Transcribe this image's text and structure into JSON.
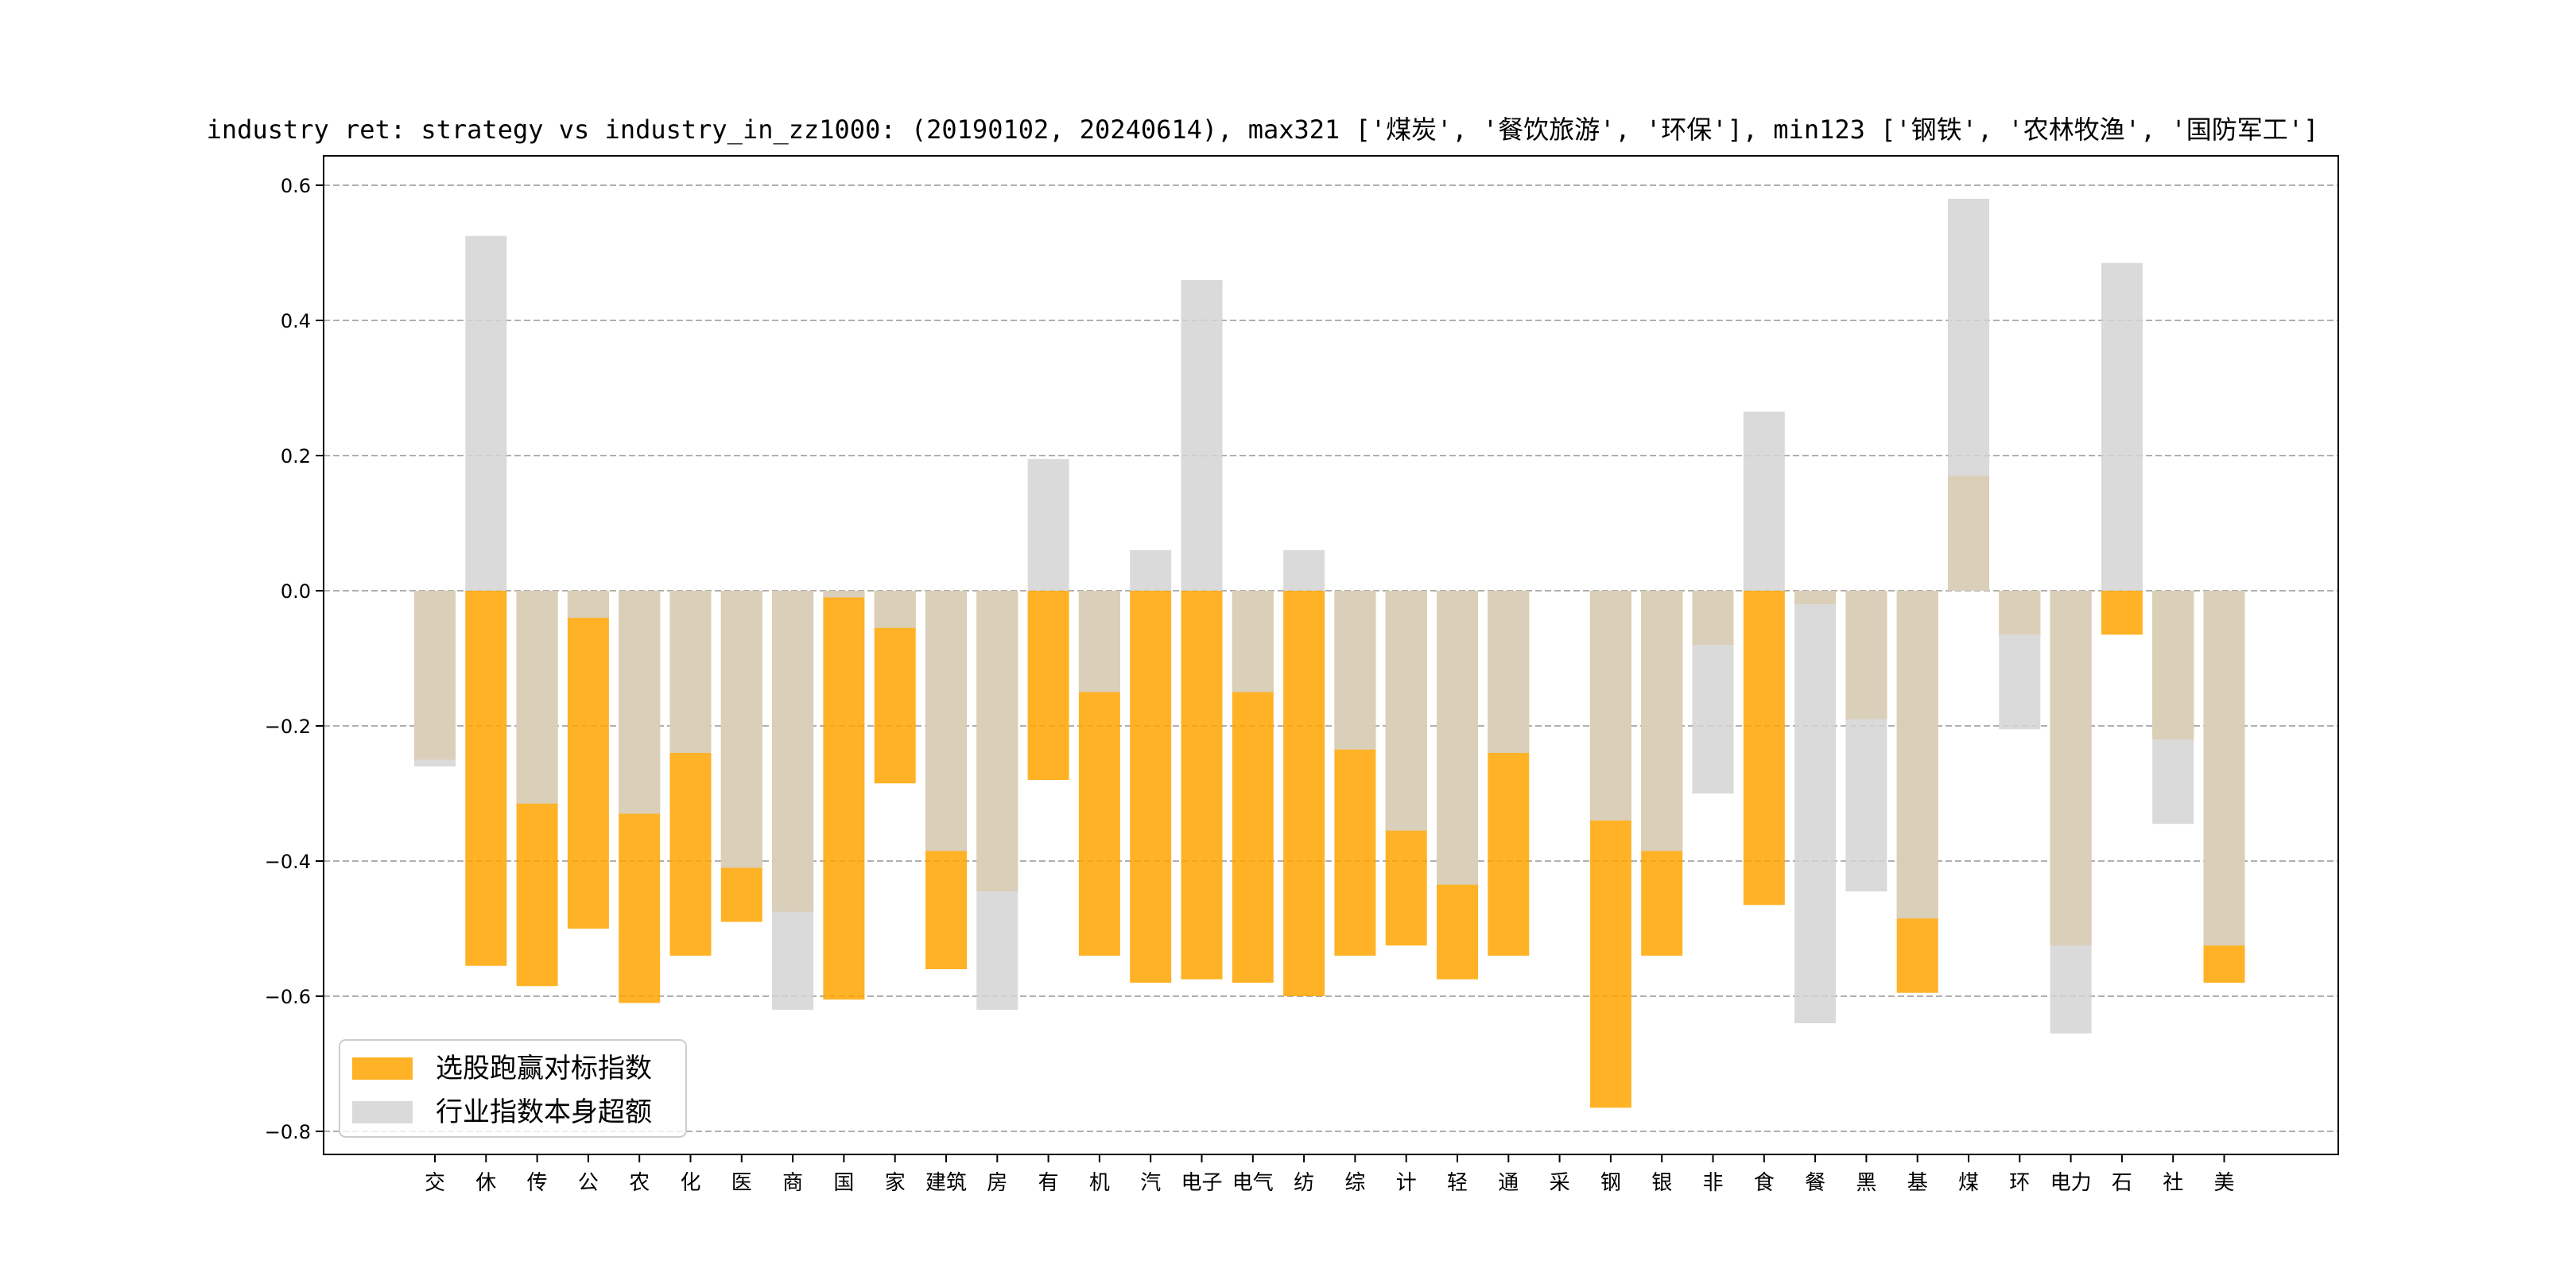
{
  "chart_data": {
    "type": "bar",
    "title": "industry ret: strategy vs industry_in_zz1000: (20190102, 20240614), max321 ['煤炭', '餐饮旅游', '环保'], min123 ['钢铁', '农林牧渔', '国防军工']",
    "xlabel": "",
    "ylabel": "",
    "ylim": [
      -0.83,
      0.65
    ],
    "yticks": [
      -0.8,
      -0.6,
      -0.4,
      -0.2,
      0.0,
      0.2,
      0.4,
      0.6
    ],
    "ytick_labels": [
      "−0.8",
      "−0.6",
      "−0.4",
      "−0.2",
      "0.0",
      "0.2",
      "0.4",
      "0.6"
    ],
    "grid": "y-dashed",
    "legend_position": "bottom-left",
    "categories": [
      "交",
      "休",
      "传",
      "公",
      "农",
      "化",
      "医",
      "商",
      "国",
      "家",
      "建筑",
      "房",
      "有",
      "机",
      "汽",
      "电子",
      "电气",
      "纺",
      "综",
      "计",
      "轻",
      "通",
      "采",
      "钢",
      "银",
      "非",
      "食",
      "餐",
      "黑",
      "基",
      "煤",
      "环",
      "电力",
      "石",
      "社",
      "美"
    ],
    "series": [
      {
        "name": "选股跑赢对标指数",
        "color": "#FFA500",
        "values": [
          -0.25,
          -0.555,
          -0.585,
          -0.5,
          -0.61,
          -0.54,
          -0.49,
          -0.475,
          -0.605,
          -0.285,
          -0.56,
          -0.445,
          -0.28,
          -0.54,
          -0.58,
          -0.575,
          -0.58,
          -0.6,
          -0.54,
          -0.525,
          -0.575,
          -0.54,
          0.0,
          -0.765,
          -0.54,
          -0.08,
          -0.465,
          -0.02,
          -0.19,
          -0.595,
          0.17,
          -0.065,
          -0.525,
          -0.065,
          -0.22,
          -0.58
        ]
      },
      {
        "name": "行业指数本身超额",
        "color": "#D3D3D3",
        "values": [
          -0.26,
          0.525,
          -0.315,
          -0.04,
          -0.33,
          -0.24,
          -0.41,
          -0.62,
          -0.01,
          -0.055,
          -0.385,
          -0.62,
          0.195,
          -0.15,
          0.06,
          0.46,
          -0.15,
          0.06,
          -0.235,
          -0.355,
          -0.435,
          -0.24,
          0.0,
          -0.34,
          -0.385,
          -0.3,
          0.265,
          -0.64,
          -0.445,
          -0.485,
          0.58,
          -0.205,
          -0.655,
          0.485,
          -0.345,
          -0.525
        ]
      }
    ]
  }
}
